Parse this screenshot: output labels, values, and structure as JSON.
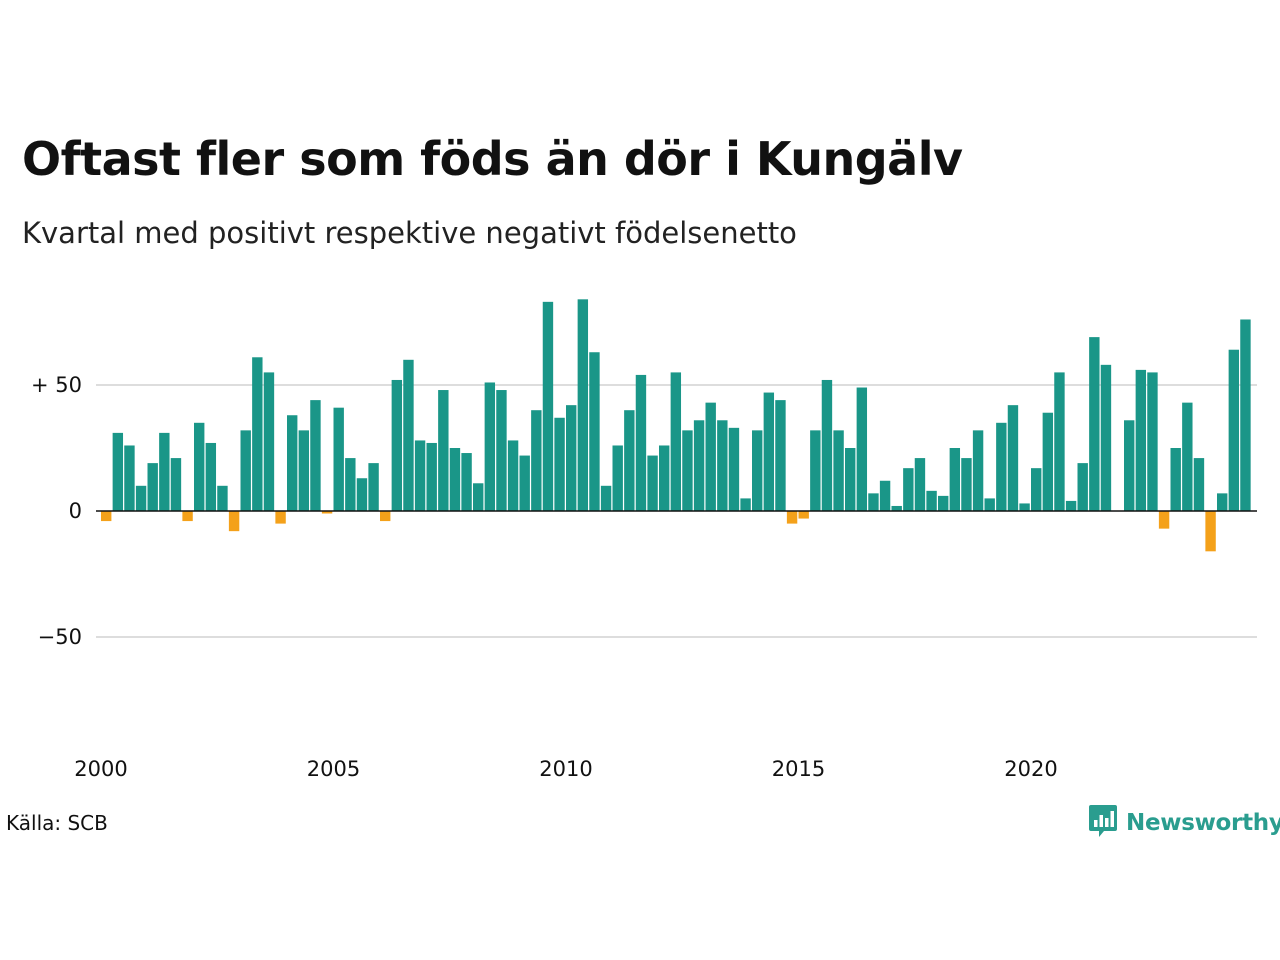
{
  "title": "Oftast fler som föds än dör i Kungälv",
  "subtitle": "Kvartal med positivt respektive negativt födelsenetto",
  "source": "Källa: SCB",
  "brand": "Newsworthy",
  "colors": {
    "positive": "#1a9688",
    "negative": "#f4a11a",
    "grid": "#dddddd",
    "zero_line": "#111111",
    "brand": "#2a9d8f"
  },
  "icons": {
    "brand_logo": "bar-chart-speech-bubble-icon"
  },
  "chart_data": {
    "type": "bar",
    "title": "Oftast fler som föds än dör i Kungälv",
    "subtitle": "Kvartal med positivt respektive negativt födelsenetto",
    "xlabel": "",
    "ylabel": "",
    "ylim": [
      -90,
      90
    ],
    "y_ticks": [
      {
        "value": 50,
        "label": "+ 50"
      },
      {
        "value": 0,
        "label": "0"
      },
      {
        "value": -50,
        "label": "−50"
      }
    ],
    "x_ticks": [
      {
        "year": 2000,
        "label": "2000"
      },
      {
        "year": 2005,
        "label": "2005"
      },
      {
        "year": 2010,
        "label": "2010"
      },
      {
        "year": 2015,
        "label": "2015"
      },
      {
        "year": 2020,
        "label": "2020"
      }
    ],
    "grid": true,
    "legend": "none",
    "series": [
      {
        "name": "",
        "start": "2000 Q1",
        "frequency": "quarter",
        "values": [
          -4,
          31,
          26,
          10,
          19,
          31,
          21,
          -4,
          35,
          27,
          10,
          -8,
          32,
          61,
          55,
          -5,
          38,
          32,
          44,
          -1,
          41,
          21,
          13,
          19,
          -4,
          52,
          60,
          28,
          27,
          48,
          25,
          23,
          11,
          51,
          48,
          28,
          22,
          40,
          83,
          37,
          42,
          84,
          63,
          10,
          26,
          40,
          54,
          22,
          26,
          55,
          32,
          36,
          43,
          36,
          33,
          5,
          32,
          47,
          44,
          -5,
          -3,
          32,
          52,
          32,
          25,
          49,
          7,
          12,
          2,
          17,
          21,
          8,
          6,
          25,
          21,
          32,
          5,
          35,
          42,
          3,
          17,
          39,
          55,
          4,
          19,
          69,
          58,
          0,
          36,
          56,
          55,
          -7,
          25,
          43,
          21,
          -16,
          7,
          64,
          76
        ]
      }
    ]
  }
}
